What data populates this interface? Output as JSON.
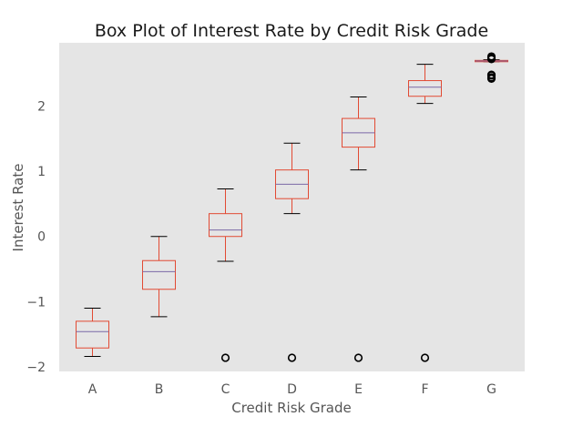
{
  "chart_data": {
    "type": "box",
    "title": "Box Plot of Interest Rate by Credit Risk Grade",
    "xlabel": "Credit Risk Grade",
    "ylabel": "Interest Rate",
    "ylim": [
      -2.07,
      2.97
    ],
    "yticks": [
      -2,
      -1,
      0,
      1,
      2
    ],
    "ytick_labels": [
      "−2",
      "−1",
      "0",
      "1",
      "2"
    ],
    "grid": false,
    "categories": [
      "A",
      "B",
      "C",
      "D",
      "E",
      "F",
      "G"
    ],
    "boxes": [
      {
        "grade": "A",
        "whisker_low": -1.84,
        "q1": -1.71,
        "median": -1.46,
        "q3": -1.3,
        "whisker_high": -1.1,
        "outliers": []
      },
      {
        "grade": "B",
        "whisker_low": -1.23,
        "q1": -0.81,
        "median": -0.54,
        "q3": -0.37,
        "whisker_high": 0.0,
        "outliers": []
      },
      {
        "grade": "C",
        "whisker_low": -0.38,
        "q1": 0.0,
        "median": 0.1,
        "q3": 0.35,
        "whisker_high": 0.73,
        "outliers": [
          -1.86
        ]
      },
      {
        "grade": "D",
        "whisker_low": 0.35,
        "q1": 0.58,
        "median": 0.8,
        "q3": 1.02,
        "whisker_high": 1.43,
        "outliers": [
          -1.86
        ]
      },
      {
        "grade": "E",
        "whisker_low": 1.02,
        "q1": 1.37,
        "median": 1.59,
        "q3": 1.81,
        "whisker_high": 2.14,
        "outliers": [
          -1.86
        ]
      },
      {
        "grade": "F",
        "whisker_low": 2.04,
        "q1": 2.15,
        "median": 2.29,
        "q3": 2.39,
        "whisker_high": 2.64,
        "outliers": [
          -1.86
        ]
      },
      {
        "grade": "G",
        "whisker_low": 2.68,
        "q1": 2.68,
        "median": 2.69,
        "q3": 2.7,
        "whisker_high": 2.71,
        "outliers": [
          2.42,
          2.44,
          2.47,
          2.48,
          2.72,
          2.74,
          2.76
        ]
      }
    ],
    "colors": {
      "background": "#e5e5e5",
      "box": "#e24a33",
      "median": "#7a68a6",
      "whisker_cap": "#000000",
      "outlier": "#000000"
    }
  }
}
